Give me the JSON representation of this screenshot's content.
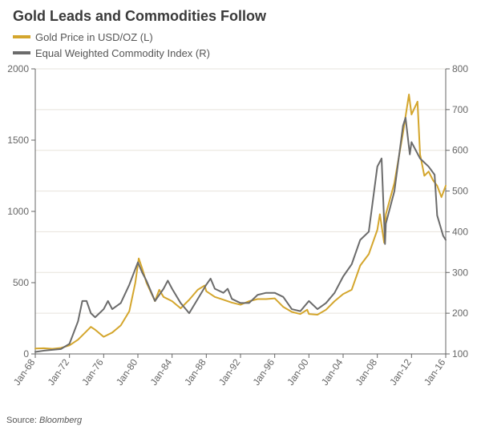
{
  "title": "Gold Leads and Commodities Follow",
  "title_fontsize": 18,
  "title_color": "#3a3a3a",
  "source_label": "Source:",
  "source_value": "Bloomberg",
  "source_fontsize": 11,
  "chart": {
    "type": "line",
    "background_color": "#ffffff",
    "grid_color": "#e7e3dc",
    "axis_color": "#666666",
    "tick_font_color": "#666666",
    "tick_fontsize": 12,
    "line_width": 2,
    "left_axis": {
      "min": 0,
      "max": 2000,
      "tick_step": 500
    },
    "right_axis": {
      "min": 100,
      "max": 800,
      "tick_step": 100
    },
    "x_axis": {
      "min": 1968,
      "max": 2016,
      "ticks": [
        1968,
        1972,
        1976,
        1980,
        1984,
        1988,
        1992,
        1996,
        2000,
        2004,
        2008,
        2012,
        2016
      ],
      "tick_labels": [
        "Jan-68",
        "Jan-72",
        "Jan-76",
        "Jan-80",
        "Jan-84",
        "Jan-88",
        "Jan-92",
        "Jan-96",
        "Jan-00",
        "Jan-04",
        "Jan-08",
        "Jan-12",
        "Jan-16"
      ],
      "label_rotation": -55
    },
    "legend": {
      "items": [
        {
          "label": "Gold Price in USD/OZ (L)",
          "color": "#d4a62d"
        },
        {
          "label": "Equal Weighted Commodity Index (R)",
          "color": "#6b6b6b"
        }
      ]
    },
    "series": [
      {
        "name": "Gold Price in USD/OZ (L)",
        "axis": "left",
        "color": "#d4a62d",
        "points": [
          [
            1968,
            38
          ],
          [
            1969,
            40
          ],
          [
            1970,
            36
          ],
          [
            1971,
            42
          ],
          [
            1972,
            60
          ],
          [
            1973,
            100
          ],
          [
            1974,
            160
          ],
          [
            1974.5,
            190
          ],
          [
            1975,
            170
          ],
          [
            1976,
            120
          ],
          [
            1977,
            150
          ],
          [
            1978,
            200
          ],
          [
            1979,
            300
          ],
          [
            1979.7,
            500
          ],
          [
            1980.1,
            670
          ],
          [
            1980.5,
            600
          ],
          [
            1981,
            500
          ],
          [
            1982,
            370
          ],
          [
            1982.5,
            450
          ],
          [
            1983,
            400
          ],
          [
            1984,
            370
          ],
          [
            1985,
            320
          ],
          [
            1986,
            380
          ],
          [
            1987,
            450
          ],
          [
            1987.8,
            480
          ],
          [
            1988,
            440
          ],
          [
            1989,
            400
          ],
          [
            1990,
            380
          ],
          [
            1991,
            360
          ],
          [
            1992,
            345
          ],
          [
            1993,
            370
          ],
          [
            1994,
            385
          ],
          [
            1995,
            385
          ],
          [
            1996,
            390
          ],
          [
            1997,
            330
          ],
          [
            1998,
            295
          ],
          [
            1999,
            280
          ],
          [
            1999.8,
            310
          ],
          [
            2000,
            280
          ],
          [
            2001,
            275
          ],
          [
            2002,
            310
          ],
          [
            2003,
            370
          ],
          [
            2004,
            420
          ],
          [
            2005,
            450
          ],
          [
            2006,
            620
          ],
          [
            2007,
            700
          ],
          [
            2008,
            870
          ],
          [
            2008.3,
            980
          ],
          [
            2008.8,
            780
          ],
          [
            2009,
            980
          ],
          [
            2010,
            1200
          ],
          [
            2011,
            1550
          ],
          [
            2011.7,
            1820
          ],
          [
            2012,
            1680
          ],
          [
            2012.7,
            1770
          ],
          [
            2013,
            1400
          ],
          [
            2013.5,
            1250
          ],
          [
            2014,
            1280
          ],
          [
            2014.5,
            1220
          ],
          [
            2015,
            1180
          ],
          [
            2015.5,
            1100
          ],
          [
            2016,
            1180
          ]
        ]
      },
      {
        "name": "Equal Weighted Commodity Index (R)",
        "axis": "right",
        "color": "#6b6b6b",
        "points": [
          [
            1968,
            105
          ],
          [
            1969,
            108
          ],
          [
            1970,
            110
          ],
          [
            1971,
            112
          ],
          [
            1972,
            125
          ],
          [
            1973,
            180
          ],
          [
            1973.5,
            230
          ],
          [
            1974,
            230
          ],
          [
            1974.5,
            200
          ],
          [
            1975,
            190
          ],
          [
            1976,
            210
          ],
          [
            1976.5,
            230
          ],
          [
            1977,
            210
          ],
          [
            1978,
            225
          ],
          [
            1979,
            270
          ],
          [
            1980,
            325
          ],
          [
            1980.5,
            300
          ],
          [
            1981,
            280
          ],
          [
            1982,
            230
          ],
          [
            1983,
            260
          ],
          [
            1983.5,
            280
          ],
          [
            1984,
            260
          ],
          [
            1985,
            225
          ],
          [
            1986,
            200
          ],
          [
            1987,
            235
          ],
          [
            1988,
            270
          ],
          [
            1988.5,
            285
          ],
          [
            1989,
            260
          ],
          [
            1990,
            250
          ],
          [
            1990.5,
            260
          ],
          [
            1991,
            235
          ],
          [
            1992,
            225
          ],
          [
            1993,
            225
          ],
          [
            1994,
            245
          ],
          [
            1995,
            250
          ],
          [
            1996,
            250
          ],
          [
            1997,
            240
          ],
          [
            1998,
            210
          ],
          [
            1999,
            205
          ],
          [
            2000,
            230
          ],
          [
            2001,
            210
          ],
          [
            2002,
            225
          ],
          [
            2003,
            250
          ],
          [
            2004,
            290
          ],
          [
            2005,
            320
          ],
          [
            2006,
            380
          ],
          [
            2007,
            400
          ],
          [
            2008,
            560
          ],
          [
            2008.5,
            580
          ],
          [
            2008.9,
            370
          ],
          [
            2009,
            420
          ],
          [
            2010,
            500
          ],
          [
            2011,
            660
          ],
          [
            2011.3,
            680
          ],
          [
            2011.8,
            590
          ],
          [
            2012,
            620
          ],
          [
            2013,
            580
          ],
          [
            2014,
            560
          ],
          [
            2014.7,
            540
          ],
          [
            2015,
            440
          ],
          [
            2015.7,
            390
          ],
          [
            2016,
            380
          ]
        ]
      }
    ]
  }
}
